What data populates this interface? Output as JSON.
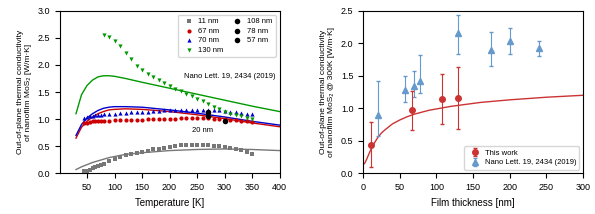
{
  "chart_data": [
    {
      "type": "scatter",
      "xlabel": "Temperature [K]",
      "ylabel": "Out-of-plane thermal conductivity\nof nanofilm MoS₂ [W/m·K]",
      "xlim": [
        0,
        400
      ],
      "ylim": [
        0,
        3.0
      ],
      "xticks": [
        50,
        100,
        150,
        200,
        250,
        300,
        350,
        400
      ],
      "yticks": [
        {
          "value": 0.0,
          "label": "0.0"
        },
        0.5,
        {
          "value": 1.0,
          "label": "1.0"
        },
        1.5,
        {
          "value": 2.0,
          "label": "2.0"
        },
        2.5,
        {
          "value": 3.0,
          "label": "3.0"
        }
      ],
      "legend": "upper right",
      "annotations": [
        "Nano Lett. 19, 2434 (2019)",
        "20 nm"
      ],
      "series": [
        {
          "type": "line",
          "color": "#777777",
          "x": [
            30,
            40,
            50,
            60,
            70,
            80,
            90,
            100,
            120,
            150,
            200,
            250,
            300,
            350,
            400
          ],
          "values": [
            0.07,
            0.12,
            0.16,
            0.2,
            0.23,
            0.26,
            0.29,
            0.31,
            0.35,
            0.38,
            0.42,
            0.44,
            0.45,
            0.44,
            0.42
          ]
        },
        {
          "type": "line",
          "color": "#cc0000",
          "x": [
            30,
            40,
            50,
            60,
            70,
            80,
            90,
            100,
            120,
            150,
            200,
            250,
            300,
            350,
            400
          ],
          "values": [
            0.65,
            0.85,
            0.96,
            1.04,
            1.1,
            1.14,
            1.17,
            1.18,
            1.19,
            1.18,
            1.14,
            1.08,
            1.01,
            0.93,
            0.86
          ]
        },
        {
          "type": "line",
          "color": "#0000cc",
          "x": [
            30,
            40,
            50,
            60,
            70,
            80,
            90,
            100,
            120,
            150,
            200,
            250,
            300,
            350,
            400
          ],
          "values": [
            0.7,
            0.9,
            1.02,
            1.1,
            1.16,
            1.2,
            1.22,
            1.23,
            1.23,
            1.22,
            1.17,
            1.11,
            1.04,
            0.96,
            0.89
          ]
        },
        {
          "type": "line",
          "color": "#009900",
          "x": [
            30,
            40,
            50,
            60,
            70,
            80,
            90,
            100,
            120,
            150,
            200,
            250,
            300,
            350,
            400
          ],
          "values": [
            1.1,
            1.45,
            1.62,
            1.72,
            1.78,
            1.8,
            1.8,
            1.79,
            1.75,
            1.68,
            1.57,
            1.46,
            1.35,
            1.24,
            1.14
          ]
        },
        {
          "name": "11 nm",
          "color": "#777777",
          "marker": "square",
          "x": [
            45,
            50,
            55,
            60,
            65,
            70,
            75,
            80,
            90,
            100,
            110,
            120,
            130,
            140,
            150,
            160,
            170,
            180,
            190,
            200,
            210,
            220,
            230,
            240,
            250,
            260,
            270,
            280,
            290,
            300,
            310,
            320,
            330,
            340,
            350
          ],
          "values": [
            0.04,
            0.05,
            0.07,
            0.09,
            0.11,
            0.13,
            0.16,
            0.18,
            0.22,
            0.27,
            0.3,
            0.33,
            0.35,
            0.37,
            0.4,
            0.42,
            0.44,
            0.45,
            0.47,
            0.48,
            0.5,
            0.52,
            0.52,
            0.53,
            0.53,
            0.52,
            0.52,
            0.51,
            0.5,
            0.49,
            0.47,
            0.45,
            0.43,
            0.4,
            0.36
          ]
        },
        {
          "name": "67 nm",
          "color": "#cc0000",
          "marker": "circle",
          "x": [
            45,
            50,
            55,
            60,
            65,
            70,
            75,
            80,
            90,
            100,
            110,
            120,
            130,
            140,
            150,
            160,
            170,
            180,
            190,
            200,
            210,
            220,
            230,
            240,
            250,
            260,
            270,
            280,
            290,
            300,
            310,
            320,
            330,
            340,
            350
          ],
          "values": [
            0.92,
            0.93,
            0.95,
            0.96,
            0.97,
            0.97,
            0.97,
            0.97,
            0.97,
            0.98,
            0.98,
            0.98,
            0.99,
            0.99,
            0.99,
            1.0,
            1.0,
            1.0,
            1.01,
            1.01,
            1.01,
            1.02,
            1.02,
            1.02,
            1.02,
            1.02,
            1.02,
            1.01,
            1.01,
            1.0,
            0.99,
            0.98,
            0.97,
            0.96,
            0.95
          ]
        },
        {
          "name": "70 nm",
          "color": "#0000cc",
          "marker": "triangle_up",
          "x": [
            45,
            50,
            55,
            60,
            65,
            70,
            75,
            80,
            90,
            100,
            110,
            120,
            130,
            140,
            150,
            160,
            170,
            180,
            190,
            200,
            210,
            220,
            230,
            240,
            250,
            260,
            270,
            280,
            290,
            300,
            310,
            320,
            330,
            340,
            350
          ],
          "values": [
            1.03,
            1.04,
            1.05,
            1.06,
            1.07,
            1.07,
            1.08,
            1.09,
            1.09,
            1.1,
            1.11,
            1.12,
            1.13,
            1.13,
            1.14,
            1.14,
            1.15,
            1.15,
            1.16,
            1.16,
            1.17,
            1.17,
            1.17,
            1.17,
            1.17,
            1.17,
            1.17,
            1.16,
            1.16,
            1.15,
            1.14,
            1.13,
            1.12,
            1.1,
            1.09
          ]
        },
        {
          "name": "130 nm",
          "color": "#009900",
          "marker": "triangle_down",
          "x": [
            80,
            90,
            100,
            110,
            120,
            130,
            140,
            150,
            160,
            170,
            180,
            190,
            200,
            210,
            220,
            230,
            240,
            250,
            260,
            270,
            280,
            290,
            300,
            310,
            320,
            330,
            340,
            350
          ],
          "values": [
            2.55,
            2.52,
            2.45,
            2.35,
            2.22,
            2.1,
            1.98,
            1.9,
            1.83,
            1.78,
            1.73,
            1.67,
            1.62,
            1.56,
            1.52,
            1.47,
            1.43,
            1.38,
            1.33,
            1.28,
            1.23,
            1.18,
            1.14,
            1.1,
            1.07,
            1.05,
            1.03,
            1.01
          ]
        },
        {
          "name": "108 nm",
          "color": "black",
          "marker": "circle",
          "x": [
            300
          ],
          "values": [
            0.97
          ]
        },
        {
          "name": "78 nm",
          "color": "black",
          "marker": "circle",
          "x": [
            270
          ],
          "values": [
            1.14
          ]
        },
        {
          "name": "57 nm",
          "color": "black",
          "marker": "circle",
          "x": [
            270
          ],
          "values": [
            1.05
          ]
        }
      ]
    },
    {
      "type": "scatter",
      "xlabel": "Film thickness [nm]",
      "ylabel": "Out-of-plane thermal conductivity\nof nanofilm MoS₂ @ 300K [W/m·K]",
      "xlim": [
        0,
        300
      ],
      "ylim": [
        0.0,
        2.5
      ],
      "xticks": [
        0,
        50,
        100,
        150,
        200,
        250,
        300
      ],
      "yticks": [
        {
          "value": 0.0,
          "label": "0.0"
        },
        0.5,
        {
          "value": 1.0,
          "label": "1.0"
        },
        1.5,
        {
          "value": 2.0,
          "label": "2.0"
        },
        2.5
      ],
      "legend": "lower right",
      "series": [
        {
          "type": "line",
          "color": "#cc3333",
          "x": [
            2,
            5,
            8,
            10,
            15,
            20,
            25,
            30,
            40,
            50,
            60,
            70,
            80,
            90,
            100,
            120,
            140,
            160,
            200,
            250,
            300
          ],
          "values": [
            0.15,
            0.22,
            0.3,
            0.35,
            0.46,
            0.55,
            0.62,
            0.67,
            0.76,
            0.82,
            0.87,
            0.91,
            0.94,
            0.97,
            0.99,
            1.03,
            1.06,
            1.09,
            1.13,
            1.17,
            1.2
          ]
        },
        {
          "name": "This work",
          "color": "#cc3333",
          "marker": "circle",
          "x": [
            11,
            67,
            108,
            130
          ],
          "values": [
            0.44,
            0.97,
            1.14,
            1.16
          ],
          "error": [
            0.35,
            0.3,
            0.38,
            0.48
          ]
        },
        {
          "name": "Nano Lett. 19, 2434 (2019)",
          "color": "#6699cc",
          "marker": "triangle_up",
          "x": [
            20,
            57,
            70,
            78,
            130,
            175,
            200,
            240
          ],
          "values": [
            0.9,
            1.28,
            1.35,
            1.42,
            2.15,
            1.9,
            2.03,
            1.92
          ],
          "error_lo": [
            0.32,
            0.18,
            0.18,
            0.18,
            0.32,
            0.25,
            0.2,
            0.12
          ],
          "error_hi": [
            0.52,
            0.22,
            0.22,
            0.4,
            0.28,
            0.28,
            0.2,
            0.12
          ]
        }
      ]
    }
  ]
}
